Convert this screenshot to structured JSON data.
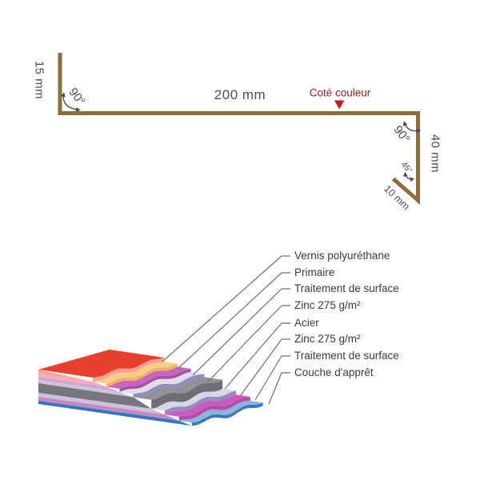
{
  "profile": {
    "dim_left": "15 mm",
    "dim_top": "200 mm",
    "dim_right": "40 mm",
    "dim_fold": "10 mm",
    "angle_left": "90°",
    "angle_right": "90°",
    "angle_fold": "45°",
    "color_side_label": "Coté couleur",
    "line_color": "#8A6E3C",
    "label_color": "#8E1F24",
    "marker_color": "#C41E25",
    "text_color": "#4C4C4C"
  },
  "stack": {
    "leader_color": "#6F6F6F",
    "layers": [
      {
        "label": "Vernis polyuréthane",
        "top": "#E8402F",
        "front": "#F8A18C",
        "side": "#F8A695"
      },
      {
        "label": "Primaire",
        "top": "#F7CE87",
        "front": "#EFB063",
        "side": "#F2AFBB"
      },
      {
        "label": "Traitement de surface",
        "top": "#C666BE",
        "front": "#A94FA4",
        "side": "#D9A3CF"
      },
      {
        "label": "Zinc 275 g/m²",
        "top": "#DEDDE9",
        "front": "#8F8CC1",
        "side": "#C9C6DC"
      },
      {
        "label": "Acier",
        "top": "#919196",
        "front": "#6F6E74",
        "side": "#77767C"
      },
      {
        "label": "Zinc 275 g/m²",
        "top": "#D8D6E5",
        "front": "#8F8CC1",
        "side": "#C6C3DA"
      },
      {
        "label": "Traitement de surface",
        "top": "#CA5ABD",
        "front": "#B14FA8",
        "side": "#C987C2"
      },
      {
        "label": "Couche d'apprêt",
        "top": "#8FB3DF",
        "front": "#3878BF",
        "side": "#2E79BE"
      }
    ]
  }
}
